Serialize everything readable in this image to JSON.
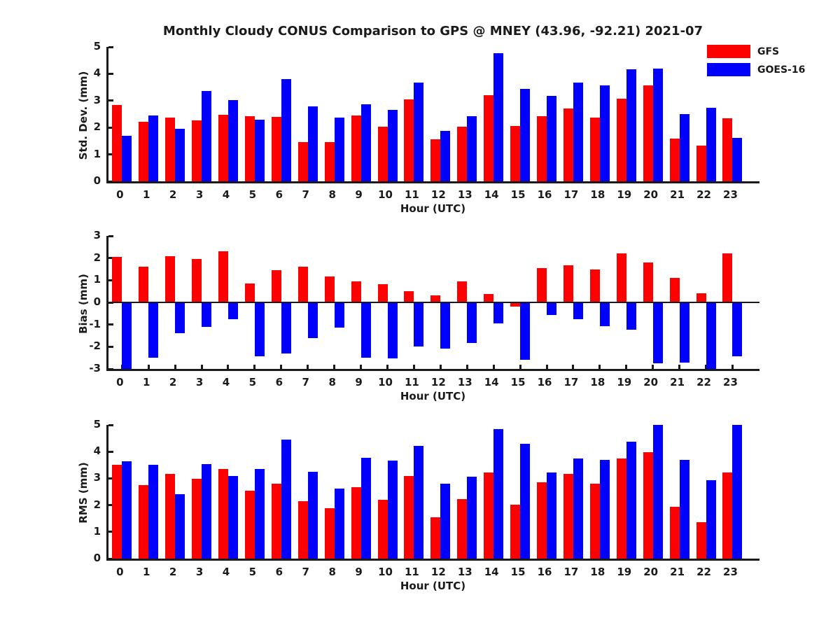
{
  "title": "Monthly Cloudy CONUS Comparison to GPS @ MNEY (43.96, -92.21) 2021-07",
  "axis_color": "#1a1a1a",
  "legend": {
    "items": [
      {
        "label": "GFS",
        "color": "#ff0000"
      },
      {
        "label": "GOES-16",
        "color": "#0000ff"
      }
    ]
  },
  "chart_data": [
    {
      "type": "bar",
      "panel": "std-dev",
      "ylabel": "Std. Dev. (mm)",
      "xlabel": "Hour (UTC)",
      "ylim": [
        0,
        5
      ],
      "yticks": [
        0,
        1,
        2,
        3,
        4,
        5
      ],
      "categories": [
        0,
        1,
        2,
        3,
        4,
        5,
        6,
        7,
        8,
        9,
        10,
        11,
        12,
        13,
        14,
        15,
        16,
        17,
        18,
        19,
        20,
        21,
        22,
        23
      ],
      "legend_position": "top-right",
      "grid": false,
      "series": [
        {
          "name": "GFS",
          "color": "#ff0000",
          "values": [
            2.84,
            2.21,
            2.37,
            2.26,
            2.47,
            2.42,
            2.39,
            1.45,
            1.47,
            2.46,
            2.03,
            3.05,
            1.55,
            2.04,
            3.21,
            2.05,
            2.41,
            2.72,
            2.37,
            3.08,
            3.56,
            1.6,
            1.33,
            2.35
          ]
        },
        {
          "name": "GOES-16",
          "color": "#0000ff",
          "values": [
            1.7,
            2.45,
            1.96,
            3.36,
            3.03,
            2.29,
            3.81,
            2.78,
            2.37,
            2.86,
            2.65,
            3.68,
            1.87,
            2.41,
            4.76,
            3.43,
            3.18,
            3.67,
            3.57,
            4.17,
            4.2,
            2.5,
            2.73,
            1.62
          ]
        }
      ]
    },
    {
      "type": "bar",
      "panel": "bias",
      "ylabel": "Bias (mm)",
      "xlabel": "Hour (UTC)",
      "ylim": [
        -3,
        3
      ],
      "yticks": [
        -3,
        -2,
        -1,
        0,
        1,
        2,
        3
      ],
      "categories": [
        0,
        1,
        2,
        3,
        4,
        5,
        6,
        7,
        8,
        9,
        10,
        11,
        12,
        13,
        14,
        15,
        16,
        17,
        18,
        19,
        20,
        21,
        22,
        23
      ],
      "grid": false,
      "series": [
        {
          "name": "GFS",
          "color": "#ff0000",
          "values": [
            2.04,
            1.62,
            2.1,
            1.95,
            2.31,
            0.86,
            1.44,
            1.6,
            1.17,
            0.96,
            0.83,
            0.52,
            0.31,
            0.96,
            0.38,
            -0.18,
            1.54,
            1.66,
            1.5,
            2.2,
            1.81,
            1.11,
            0.42,
            2.21
          ]
        },
        {
          "name": "GOES-16",
          "color": "#0000ff",
          "values": [
            -3.0,
            -2.51,
            -1.4,
            -1.1,
            -0.76,
            -2.44,
            -2.31,
            -1.62,
            -1.15,
            -2.49,
            -2.52,
            -2.0,
            -2.07,
            -1.84,
            -0.95,
            -2.58,
            -0.57,
            -0.76,
            -1.07,
            -1.22,
            -2.76,
            -2.7,
            -3.0,
            -2.44
          ]
        }
      ]
    },
    {
      "type": "bar",
      "panel": "rms",
      "ylabel": "RMS (mm)",
      "xlabel": "Hour (UTC)",
      "ylim": [
        0,
        5
      ],
      "yticks": [
        0,
        1,
        2,
        3,
        4,
        5
      ],
      "categories": [
        0,
        1,
        2,
        3,
        4,
        5,
        6,
        7,
        8,
        9,
        10,
        11,
        12,
        13,
        14,
        15,
        16,
        17,
        18,
        19,
        20,
        21,
        22,
        23
      ],
      "grid": false,
      "series": [
        {
          "name": "GFS",
          "color": "#ff0000",
          "values": [
            3.5,
            2.75,
            3.16,
            2.98,
            3.35,
            2.55,
            2.8,
            2.14,
            1.89,
            2.66,
            2.19,
            3.09,
            1.55,
            2.22,
            3.21,
            2.01,
            2.86,
            3.17,
            2.81,
            3.74,
            3.99,
            1.93,
            1.37,
            3.21
          ]
        },
        {
          "name": "GOES-16",
          "color": "#0000ff",
          "values": [
            3.65,
            3.52,
            2.4,
            3.53,
            3.1,
            3.35,
            4.46,
            3.25,
            2.63,
            3.76,
            3.66,
            4.21,
            2.79,
            3.06,
            4.84,
            4.3,
            3.22,
            3.75,
            3.7,
            4.36,
            5.0,
            3.68,
            2.92,
            5.0
          ]
        }
      ]
    }
  ]
}
